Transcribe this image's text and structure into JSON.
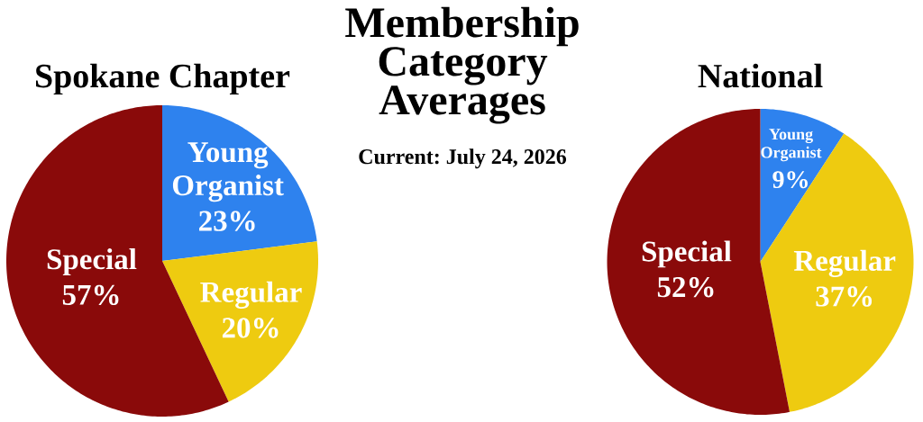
{
  "chart_data": [
    {
      "type": "other",
      "title": "Membership Category Averages",
      "subtitle": "Current: July 24, 2026"
    },
    {
      "type": "pie",
      "title": "Spokane Chapter",
      "categories": [
        "Young Organist",
        "Regular",
        "Special"
      ],
      "values": [
        23,
        20,
        57
      ],
      "value_labels": [
        "23%",
        "20%",
        "57%"
      ],
      "colors": [
        "#2e82ee",
        "#eecb10",
        "#8a0a0a"
      ]
    },
    {
      "type": "pie",
      "title": "National",
      "categories": [
        "Young Organist",
        "Regular",
        "Special"
      ],
      "values": [
        9,
        37,
        52
      ],
      "value_labels": [
        "9%",
        "37%",
        "52%"
      ],
      "colors": [
        "#2e82ee",
        "#eecb10",
        "#8a0a0a"
      ]
    }
  ]
}
